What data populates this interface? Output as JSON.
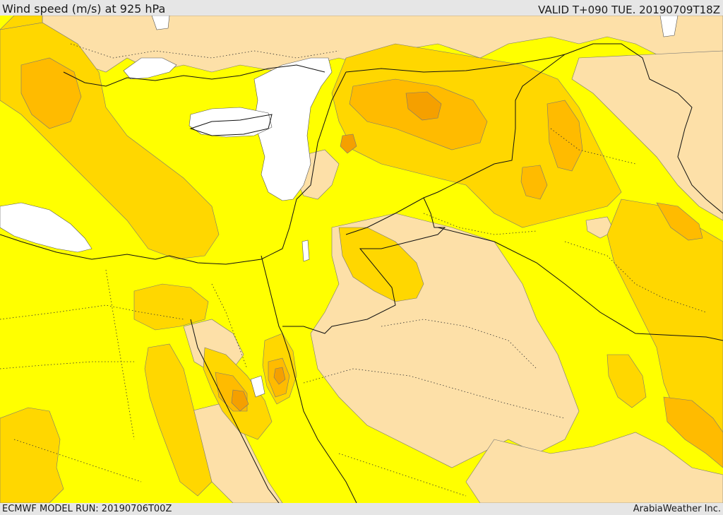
{
  "header": {
    "title": "Wind speed (m/s) at 925 hPa",
    "valid_time": "VALID T+090 TUE. 20190709T18Z"
  },
  "footer": {
    "model_run": "ECMWF MODEL RUN: 20190706T00Z",
    "credit": "ArabiaWeather Inc."
  },
  "map": {
    "field": "wind speed",
    "level": "925 hPa",
    "colors": {
      "low_wind": "#fde0a8",
      "moderate_wind": "#ffff00",
      "strong_wind": "#ffd700",
      "stronger_wind": "#ffbb00",
      "strongest_wind": "#f5a000",
      "masked_sea": "#ffffff",
      "borders": "#111111"
    }
  }
}
